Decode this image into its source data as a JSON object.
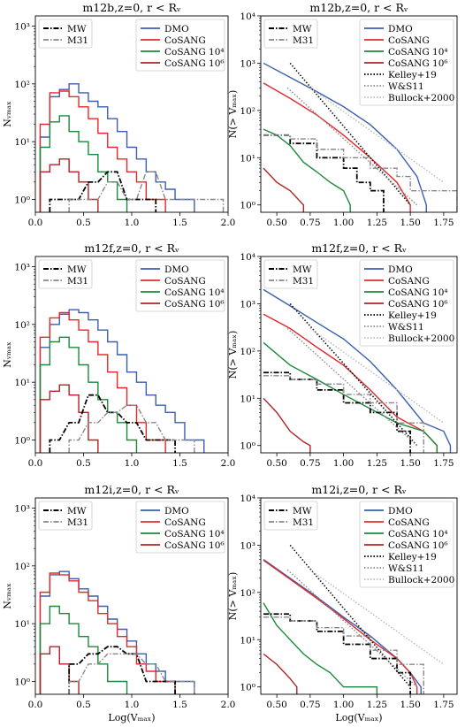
{
  "colors": {
    "DMO": "#3a5fb0",
    "CoSANG": "#e5282b",
    "CoSANG 10^4": "#1a8a3a",
    "CoSANG 10^6": "#b22222",
    "MW": "#000000",
    "M31": "#888888",
    "Kelley+19": "#111111",
    "W&S11": "#888888",
    "Bullock+2000": "#bbbbbb"
  },
  "legend_labels": {
    "MW": "MW",
    "M31": "M31",
    "DMO": "DMO",
    "CoSANG": "CoSANG",
    "CoSANG4": "CoSANG 10⁴",
    "CoSANG6": "CoSANG 10⁶",
    "Kelley": "Kelley+19",
    "WS": "W&S11",
    "Bullock": "Bullock+2000"
  },
  "chart_data": [
    {
      "type": "line",
      "panel": "differential",
      "title": "m12b,z=0, r < Rᵥ",
      "ylabel": "N_Vmax",
      "xlabel": "",
      "xlim": [
        0,
        2.0
      ],
      "ylim": [
        0.6,
        1500
      ],
      "yscale": "log",
      "xticks": [
        "0.0",
        "0.5",
        "1.0",
        "1.5",
        "2.0"
      ],
      "yticks": [
        "10⁰",
        "10¹",
        "10²",
        "10³"
      ],
      "legend_positions": [
        "top-left",
        "top-right"
      ],
      "series": [
        {
          "name": "DMO",
          "x": [
            0.1,
            0.2,
            0.3,
            0.4,
            0.5,
            0.6,
            0.7,
            0.8,
            0.9,
            1.0,
            1.1,
            1.2,
            1.3,
            1.4,
            1.5,
            1.6
          ],
          "y": [
            12,
            60,
            80,
            100,
            70,
            50,
            40,
            25,
            15,
            8,
            5,
            3,
            2,
            1.5,
            1,
            1
          ]
        },
        {
          "name": "CoSANG",
          "x": [
            0.1,
            0.2,
            0.3,
            0.4,
            0.5,
            0.6,
            0.7,
            0.8,
            0.9,
            1.0,
            1.1,
            1.2,
            1.3
          ],
          "y": [
            20,
            70,
            75,
            60,
            40,
            25,
            14,
            8,
            5,
            3,
            2,
            1,
            1
          ]
        },
        {
          "name": "CoSANG 10^4",
          "x": [
            0.1,
            0.2,
            0.3,
            0.4,
            0.5,
            0.6,
            0.7,
            0.8,
            0.9
          ],
          "y": [
            8,
            22,
            28,
            15,
            10,
            6,
            3,
            2,
            1
          ]
        },
        {
          "name": "CoSANG 10^6",
          "x": [
            0.1,
            0.2,
            0.3,
            0.4,
            0.5,
            0.6
          ],
          "y": [
            3,
            4,
            5,
            3,
            2,
            1
          ]
        },
        {
          "name": "MW",
          "x": [
            0.2,
            0.4,
            0.6,
            0.8,
            1.0,
            1.2
          ],
          "y": [
            1,
            1,
            2,
            3,
            1,
            1
          ]
        },
        {
          "name": "M31",
          "x": [
            0.4,
            0.6,
            0.8,
            1.0,
            1.2,
            1.4,
            1.6,
            1.9
          ],
          "y": [
            1,
            1,
            2,
            1,
            3,
            1,
            1,
            1
          ]
        }
      ]
    },
    {
      "type": "line",
      "panel": "cumulative",
      "title": "m12b,z=0, r < Rᵥ",
      "ylabel": "N(> V_max)",
      "xlabel": "",
      "xlim": [
        0.38,
        1.85
      ],
      "ylim": [
        0.7,
        10000
      ],
      "yscale": "log",
      "xticks": [
        "0.50",
        "0.75",
        "1.00",
        "1.25",
        "1.50",
        "1.75"
      ],
      "yticks": [
        "10⁰",
        "10¹",
        "10²",
        "10³",
        "10⁴"
      ],
      "legend_positions": [
        "top-left",
        "top-right"
      ],
      "series": [
        {
          "name": "DMO",
          "x": [
            0.4,
            0.6,
            0.8,
            1.0,
            1.2,
            1.4,
            1.55,
            1.62
          ],
          "y": [
            1000,
            500,
            250,
            120,
            50,
            15,
            4,
            1
          ]
        },
        {
          "name": "CoSANG",
          "x": [
            0.4,
            0.6,
            0.8,
            1.0,
            1.2,
            1.4,
            1.5
          ],
          "y": [
            380,
            180,
            80,
            30,
            10,
            3,
            1
          ]
        },
        {
          "name": "CoSANG 10^4",
          "x": [
            0.4,
            0.5,
            0.6,
            0.7,
            0.8,
            0.9,
            1.0,
            1.05
          ],
          "y": [
            40,
            30,
            18,
            8,
            5,
            3,
            2,
            1
          ]
        },
        {
          "name": "CoSANG 10^6",
          "x": [
            0.4,
            0.5,
            0.6,
            0.7
          ],
          "y": [
            6,
            3,
            2,
            1
          ]
        },
        {
          "name": "MW",
          "x": [
            0.4,
            0.6,
            0.8,
            1.0,
            1.1,
            1.2,
            1.3
          ],
          "y": [
            30,
            20,
            10,
            6,
            3,
            2,
            1
          ]
        },
        {
          "name": "M31",
          "x": [
            0.4,
            0.6,
            0.8,
            1.0,
            1.2,
            1.4,
            1.5,
            1.85
          ],
          "y": [
            30,
            25,
            15,
            10,
            6,
            4,
            2,
            1
          ]
        },
        {
          "name": "Kelley+19",
          "x": [
            0.6,
            1.5
          ],
          "y": [
            1000,
            1
          ]
        },
        {
          "name": "W&S11",
          "x": [
            0.58,
            1.55
          ],
          "y": [
            300,
            1
          ]
        },
        {
          "name": "Bullock+2000",
          "x": [
            0.75,
            1.75
          ],
          "y": [
            300,
            3
          ]
        }
      ]
    },
    {
      "type": "line",
      "panel": "differential",
      "title": "m12f,z=0, r < Rᵥ",
      "ylabel": "N_Vmax",
      "xlabel": "",
      "xlim": [
        0,
        2.0
      ],
      "ylim": [
        0.6,
        1500
      ],
      "yscale": "log",
      "xticks": [
        "0.0",
        "0.5",
        "1.0",
        "1.5",
        "2.0"
      ],
      "yticks": [
        "10⁰",
        "10¹",
        "10²",
        "10³"
      ],
      "legend_positions": [
        "top-left",
        "top-right"
      ],
      "series": [
        {
          "name": "DMO",
          "x": [
            0.1,
            0.2,
            0.3,
            0.4,
            0.5,
            0.6,
            0.7,
            0.8,
            0.9,
            1.0,
            1.1,
            1.2,
            1.3,
            1.4,
            1.5,
            1.6,
            1.7
          ],
          "y": [
            40,
            100,
            150,
            180,
            160,
            120,
            80,
            50,
            30,
            15,
            10,
            6,
            4,
            3,
            2,
            1,
            1
          ]
        },
        {
          "name": "CoSANG",
          "x": [
            0.1,
            0.2,
            0.3,
            0.4,
            0.5,
            0.6,
            0.7,
            0.8,
            0.9,
            1.0,
            1.1,
            1.2,
            1.3
          ],
          "y": [
            60,
            130,
            160,
            120,
            80,
            50,
            30,
            15,
            8,
            4,
            2,
            1,
            1
          ]
        },
        {
          "name": "CoSANG 10^4",
          "x": [
            0.1,
            0.2,
            0.3,
            0.4,
            0.5,
            0.6,
            0.7,
            0.8,
            0.9,
            1.0
          ],
          "y": [
            20,
            50,
            60,
            40,
            20,
            10,
            5,
            3,
            2,
            1
          ]
        },
        {
          "name": "CoSANG 10^6",
          "x": [
            0.1,
            0.2,
            0.3,
            0.4,
            0.5,
            0.6
          ],
          "y": [
            5,
            7,
            9,
            6,
            3,
            1
          ]
        },
        {
          "name": "MW",
          "x": [
            0.2,
            0.4,
            0.6,
            0.8,
            1.0,
            1.2,
            1.4
          ],
          "y": [
            1,
            2,
            6,
            3,
            2,
            1,
            1
          ]
        },
        {
          "name": "M31",
          "x": [
            0.4,
            0.6,
            0.8,
            1.0,
            1.2,
            1.4,
            1.6
          ],
          "y": [
            1,
            2,
            3,
            4,
            2,
            1,
            1
          ]
        }
      ]
    },
    {
      "type": "line",
      "panel": "cumulative",
      "title": "m12f,z=0, r < Rᵥ",
      "ylabel": "N(> V_max)",
      "xlabel": "",
      "xlim": [
        0.38,
        1.85
      ],
      "ylim": [
        0.7,
        10000
      ],
      "yscale": "log",
      "xticks": [
        "0.50",
        "0.75",
        "1.00",
        "1.25",
        "1.50",
        "1.75"
      ],
      "yticks": [
        "10⁰",
        "10¹",
        "10²",
        "10³",
        "10⁴"
      ],
      "legend_positions": [
        "top-left",
        "top-right"
      ],
      "series": [
        {
          "name": "DMO",
          "x": [
            0.4,
            0.6,
            0.8,
            1.0,
            1.2,
            1.4,
            1.6,
            1.75,
            1.8
          ],
          "y": [
            2000,
            900,
            400,
            180,
            60,
            15,
            3,
            2,
            1
          ]
        },
        {
          "name": "CoSANG",
          "x": [
            0.4,
            0.6,
            0.8,
            1.0,
            1.2,
            1.4,
            1.6,
            1.7
          ],
          "y": [
            600,
            300,
            120,
            50,
            15,
            4,
            2,
            1
          ]
        },
        {
          "name": "CoSANG 10^4",
          "x": [
            0.4,
            0.6,
            0.8,
            1.0,
            1.2,
            1.4,
            1.6,
            1.7
          ],
          "y": [
            150,
            50,
            25,
            12,
            6,
            3,
            2,
            1
          ]
        },
        {
          "name": "CoSANG 10^6",
          "x": [
            0.4,
            0.5,
            0.6,
            0.7,
            0.75
          ],
          "y": [
            10,
            5,
            2,
            1.2,
            1
          ]
        },
        {
          "name": "MW",
          "x": [
            0.4,
            0.6,
            0.8,
            1.0,
            1.2,
            1.4,
            1.5
          ],
          "y": [
            35,
            25,
            15,
            8,
            5,
            2,
            1
          ]
        },
        {
          "name": "M31",
          "x": [
            0.4,
            0.6,
            0.8,
            1.0,
            1.2,
            1.4,
            1.6
          ],
          "y": [
            30,
            25,
            20,
            12,
            8,
            3,
            1
          ]
        },
        {
          "name": "Kelley+19",
          "x": [
            0.6,
            1.55
          ],
          "y": [
            1000,
            1
          ]
        },
        {
          "name": "W&S11",
          "x": [
            0.58,
            1.55
          ],
          "y": [
            300,
            1
          ]
        },
        {
          "name": "Bullock+2000",
          "x": [
            0.75,
            1.75
          ],
          "y": [
            300,
            3
          ]
        }
      ]
    },
    {
      "type": "line",
      "panel": "differential",
      "title": "m12i,z=0, r < Rᵥ",
      "ylabel": "N_Vmax",
      "xlabel": "Log(V_max)",
      "xlim": [
        0,
        2.0
      ],
      "ylim": [
        0.6,
        1500
      ],
      "yscale": "log",
      "xticks": [
        "0.0",
        "0.5",
        "1.0",
        "1.5",
        "2.0"
      ],
      "yticks": [
        "10⁰",
        "10¹",
        "10²",
        "10³"
      ],
      "legend_positions": [
        "top-left",
        "top-right"
      ],
      "series": [
        {
          "name": "DMO",
          "x": [
            0.1,
            0.2,
            0.3,
            0.4,
            0.5,
            0.6,
            0.7,
            0.8,
            0.9,
            1.0,
            1.1,
            1.2,
            1.3,
            1.4,
            1.5,
            1.6
          ],
          "y": [
            30,
            70,
            80,
            60,
            40,
            30,
            20,
            12,
            8,
            5,
            3,
            2,
            1.5,
            1,
            1,
            1
          ]
        },
        {
          "name": "CoSANG",
          "x": [
            0.1,
            0.2,
            0.3,
            0.4,
            0.5,
            0.6,
            0.7,
            0.8,
            0.9,
            1.0,
            1.1,
            1.2,
            1.3,
            1.4
          ],
          "y": [
            35,
            75,
            70,
            55,
            35,
            25,
            15,
            10,
            6,
            4,
            2,
            1.5,
            1,
            1
          ]
        },
        {
          "name": "CoSANG 10^4",
          "x": [
            0.1,
            0.2,
            0.3,
            0.4,
            0.5,
            0.6,
            0.7,
            0.8,
            0.9
          ],
          "y": [
            10,
            20,
            15,
            10,
            6,
            4,
            2,
            1,
            1
          ]
        },
        {
          "name": "CoSANG 10^6",
          "x": [
            0.1,
            0.2,
            0.3,
            0.4
          ],
          "y": [
            3,
            4,
            2,
            1
          ]
        },
        {
          "name": "MW",
          "x": [
            0.4,
            0.6,
            0.8,
            1.0,
            1.2,
            1.4
          ],
          "y": [
            2,
            3,
            4,
            3,
            1,
            1
          ]
        },
        {
          "name": "M31",
          "x": [
            0.4,
            0.6,
            0.8,
            1.0,
            1.2,
            1.4,
            1.6
          ],
          "y": [
            1,
            2,
            3,
            3,
            2,
            1,
            1
          ]
        }
      ]
    },
    {
      "type": "line",
      "panel": "cumulative",
      "title": "m12i,z=0, r < Rᵥ",
      "ylabel": "N(> V_max)",
      "xlabel": "Log(V_max)",
      "xlim": [
        0.38,
        1.85
      ],
      "ylim": [
        0.7,
        10000
      ],
      "yscale": "log",
      "xticks": [
        "0.50",
        "0.75",
        "1.00",
        "1.25",
        "1.50",
        "1.75"
      ],
      "yticks": [
        "10⁰",
        "10¹",
        "10²",
        "10³",
        "10⁴"
      ],
      "legend_positions": [
        "top-left",
        "top-right"
      ],
      "series": [
        {
          "name": "DMO",
          "x": [
            0.4,
            0.6,
            0.8,
            1.0,
            1.2,
            1.4,
            1.5,
            1.58
          ],
          "y": [
            500,
            200,
            80,
            30,
            12,
            4,
            2,
            1
          ]
        },
        {
          "name": "CoSANG",
          "x": [
            0.4,
            0.6,
            0.8,
            1.0,
            1.2,
            1.4,
            1.5,
            1.55
          ],
          "y": [
            480,
            190,
            75,
            28,
            10,
            4,
            2,
            1
          ]
        },
        {
          "name": "CoSANG 10^4",
          "x": [
            0.4,
            0.5,
            0.6,
            0.7,
            0.8,
            0.9,
            1.0,
            1.25
          ],
          "y": [
            60,
            20,
            10,
            5,
            3,
            2,
            1,
            1
          ]
        },
        {
          "name": "CoSANG 10^6",
          "x": [
            0.4,
            0.5,
            0.6,
            0.65
          ],
          "y": [
            5,
            3,
            1.5,
            1
          ]
        },
        {
          "name": "MW",
          "x": [
            0.4,
            0.6,
            0.8,
            1.0,
            1.2,
            1.4,
            1.5
          ],
          "y": [
            35,
            25,
            15,
            8,
            4,
            2,
            1
          ]
        },
        {
          "name": "M31",
          "x": [
            0.4,
            0.6,
            0.8,
            1.0,
            1.2,
            1.4,
            1.6
          ],
          "y": [
            30,
            25,
            18,
            12,
            6,
            3,
            1
          ]
        },
        {
          "name": "Kelley+19",
          "x": [
            0.6,
            1.5
          ],
          "y": [
            1000,
            1
          ]
        },
        {
          "name": "W&S11",
          "x": [
            0.58,
            1.55
          ],
          "y": [
            300,
            1
          ]
        },
        {
          "name": "Bullock+2000",
          "x": [
            0.75,
            1.75
          ],
          "y": [
            300,
            3
          ]
        }
      ]
    }
  ]
}
